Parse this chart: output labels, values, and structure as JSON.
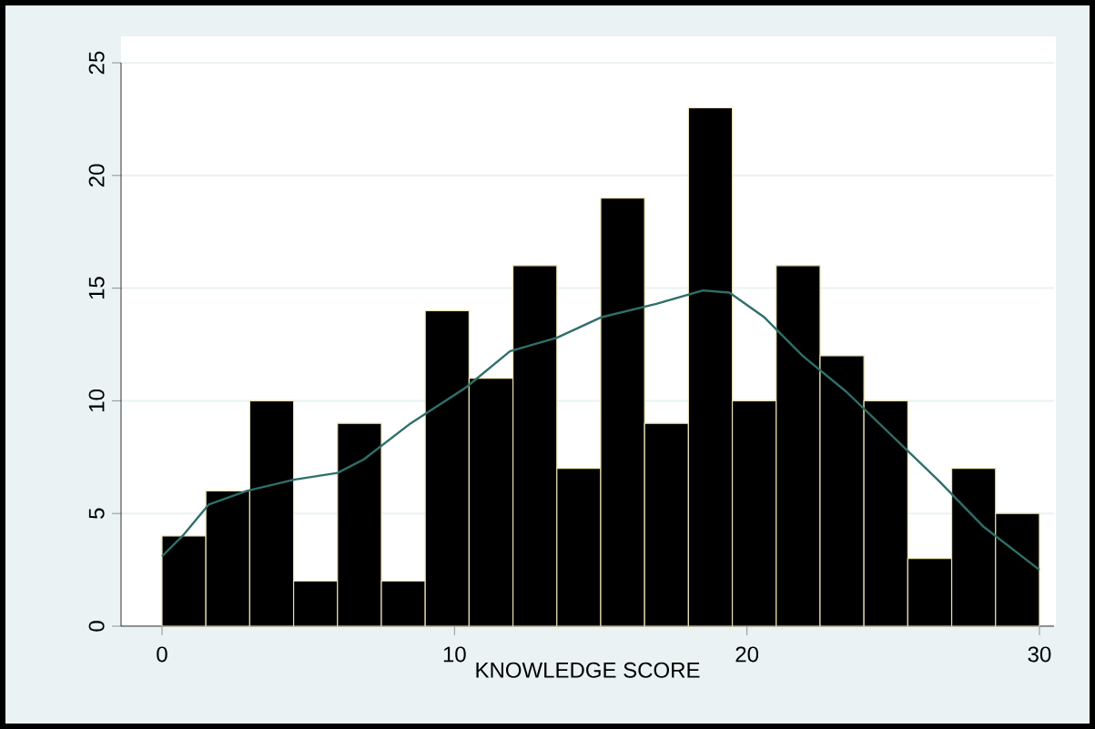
{
  "chart_data": {
    "type": "histogram",
    "xlabel": "KNOWLEDGE SCORE",
    "bins": [
      0,
      1.5,
      3,
      4.5,
      6,
      7.5,
      9,
      10.5,
      12,
      13.5,
      15,
      16.5,
      18,
      19.5,
      21,
      22.5,
      24,
      25.5,
      27,
      28.5,
      30
    ],
    "series": [
      {
        "color": "#000000",
        "values": [
          4,
          6,
          10,
          2,
          9,
          2,
          14,
          11,
          16,
          7,
          19,
          9,
          23,
          10,
          16,
          12,
          10,
          3,
          7,
          5
        ]
      },
      {
        "type": "line",
        "color": "#2f6f6a",
        "x": [
          0,
          0.7,
          1.6,
          2.9,
          4.5,
          6.0,
          6.9,
          8.5,
          10.4,
          11.9,
          13.5,
          15.0,
          16.9,
          18.5,
          19.4,
          20.6,
          21.9,
          23.4,
          25.0,
          26.6,
          28.1,
          30
        ],
        "values": [
          3.1,
          4.0,
          5.4,
          6.0,
          6.5,
          6.8,
          7.4,
          9.0,
          10.6,
          12.2,
          12.8,
          13.7,
          14.3,
          14.9,
          14.8,
          13.7,
          12.0,
          10.4,
          8.4,
          6.4,
          4.4,
          2.5
        ]
      }
    ],
    "xlim": [
      -1.4,
      30.5
    ],
    "ylim": [
      0,
      25
    ],
    "xticks": [
      0,
      10,
      20,
      30
    ],
    "yticks": [
      0,
      5,
      10,
      15,
      20,
      25
    ],
    "grid": "y"
  }
}
